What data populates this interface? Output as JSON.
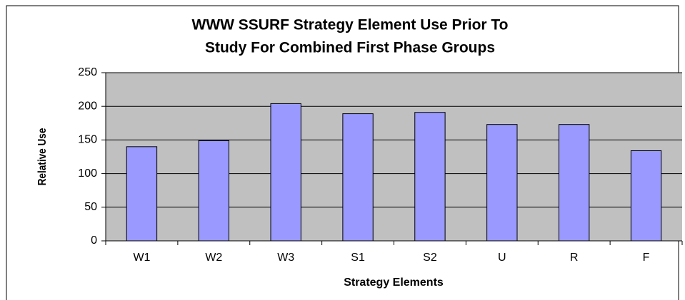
{
  "chart_data": {
    "type": "bar",
    "title": [
      "WWW SSURF Strategy Element Use Prior To",
      "Study For Combined First Phase Groups"
    ],
    "x_label": "Strategy Elements",
    "y_label": "Relative Use",
    "categories": [
      "W1",
      "W2",
      "W3",
      "S1",
      "S2",
      "U",
      "R",
      "F"
    ],
    "values": [
      140,
      149,
      204,
      189,
      191,
      173,
      173,
      134
    ],
    "color": "#9999ff",
    "plot_background": "#c0c0c0",
    "ylim": [
      0,
      250
    ],
    "yticks": [
      0,
      50,
      100,
      150,
      200,
      250
    ],
    "grid": true
  }
}
